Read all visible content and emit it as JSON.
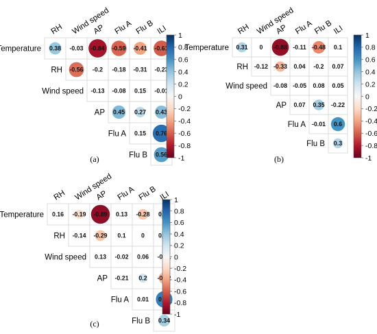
{
  "chart_data": [
    {
      "type": "heatmap",
      "panel_label": "(a)",
      "row_labels": [
        "Temperature",
        "RH",
        "Wind speed",
        "AP",
        "Flu A",
        "Flu B"
      ],
      "col_labels": [
        "RH",
        "Wind speed",
        "AP",
        "Flu A",
        "Flu B",
        "ILI"
      ],
      "matrix": [
        [
          0.38,
          -0.03,
          -0.84,
          -0.59,
          -0.41,
          -0.61
        ],
        [
          null,
          -0.56,
          -0.2,
          -0.18,
          -0.31,
          -0.23
        ],
        [
          null,
          null,
          -0.13,
          -0.08,
          0.15,
          -0.01
        ],
        [
          null,
          null,
          null,
          0.45,
          0.27,
          0.43
        ],
        [
          null,
          null,
          null,
          null,
          0.15,
          0.76
        ],
        [
          null,
          null,
          null,
          null,
          null,
          0.56
        ]
      ],
      "circle_cells": [
        [
          0,
          0
        ],
        [
          0,
          2
        ],
        [
          0,
          3
        ],
        [
          0,
          4
        ],
        [
          0,
          5
        ],
        [
          1,
          1
        ],
        [
          3,
          3
        ],
        [
          3,
          4
        ],
        [
          3,
          5
        ],
        [
          4,
          5
        ],
        [
          5,
          5
        ]
      ],
      "colorbar_ticks": [
        "1",
        "0.8",
        "0.6",
        "0.4",
        "0.2",
        "0",
        "-0.2",
        "-0.4",
        "-0.6",
        "-0.8",
        "-1"
      ]
    },
    {
      "type": "heatmap",
      "panel_label": "(b)",
      "row_labels": [
        "Temperature",
        "RH",
        "Wind speed",
        "AP",
        "Flu A",
        "Flu B"
      ],
      "col_labels": [
        "RH",
        "Wind speed",
        "AP",
        "Flu A",
        "Flu B",
        "ILI"
      ],
      "matrix": [
        [
          0.31,
          0,
          -0.88,
          -0.11,
          -0.48,
          0.1
        ],
        [
          null,
          -0.12,
          -0.33,
          0.04,
          -0.2,
          0.07
        ],
        [
          null,
          null,
          -0.08,
          -0.05,
          0.08,
          0.05
        ],
        [
          null,
          null,
          null,
          0.07,
          0.35,
          -0.22
        ],
        [
          null,
          null,
          null,
          null,
          -0.01,
          0.6
        ],
        [
          null,
          null,
          null,
          null,
          null,
          0.3
        ]
      ],
      "circle_cells": [
        [
          0,
          0
        ],
        [
          0,
          2
        ],
        [
          0,
          4
        ],
        [
          1,
          2
        ],
        [
          3,
          4
        ],
        [
          4,
          5
        ],
        [
          5,
          5
        ]
      ],
      "colorbar_ticks": [
        "1",
        "0.8",
        "0.6",
        "0.4",
        "0.2",
        "0",
        "-0.2",
        "-0.4",
        "-0.6",
        "-0.8",
        "-1"
      ]
    },
    {
      "type": "heatmap",
      "panel_label": "(c)",
      "row_labels": [
        "Temperature",
        "RH",
        "Wind speed",
        "AP",
        "Flu A",
        "Flu B"
      ],
      "col_labels": [
        "RH",
        "Wind speed",
        "AP",
        "Flu A",
        "Flu B",
        "ILI"
      ],
      "matrix": [
        [
          0.16,
          -0.19,
          -0.89,
          0.13,
          -0.28,
          0.26
        ],
        [
          null,
          -0.14,
          -0.29,
          0.1,
          0,
          0.17
        ],
        [
          null,
          null,
          0.13,
          -0.02,
          0.06,
          -0.01
        ],
        [
          null,
          null,
          null,
          -0.21,
          0.2,
          -0.32
        ],
        [
          null,
          null,
          null,
          null,
          0.01,
          0.69
        ],
        [
          null,
          null,
          null,
          null,
          null,
          0.34
        ]
      ],
      "circle_cells": [
        [
          0,
          1
        ],
        [
          0,
          2
        ],
        [
          0,
          4
        ],
        [
          0,
          5
        ],
        [
          1,
          2
        ],
        [
          1,
          5
        ],
        [
          3,
          4
        ],
        [
          3,
          5
        ],
        [
          4,
          5
        ],
        [
          5,
          5
        ]
      ],
      "colorbar_ticks": [
        "1",
        "0.8",
        "0.6",
        "0.4",
        "0.2",
        "0",
        "-0.2",
        "-0.4",
        "-0.6",
        "-0.8",
        "-1"
      ]
    }
  ],
  "colors": {
    "positive_strong": "#053061",
    "positive_mid": "#4393c3",
    "positive_light": "#d1e5f0",
    "neutral": "#f7f7f7",
    "negative_light": "#fddbc7",
    "negative_mid": "#d6604d",
    "negative_strong": "#67001f"
  }
}
